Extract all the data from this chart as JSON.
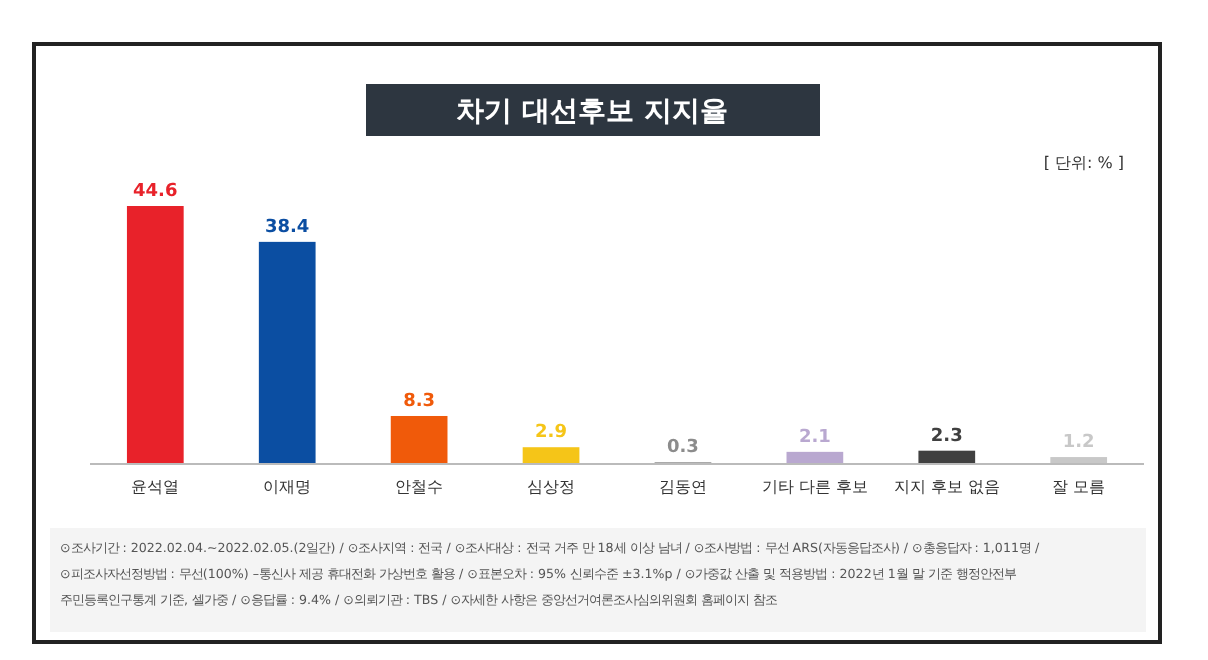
{
  "chart_data": {
    "type": "bar",
    "title": "차기 대선후보 지지율",
    "categories": [
      "윤석열",
      "이재명",
      "안철수",
      "심상정",
      "김동연",
      "기타 다른 후보",
      "지지 후보 없음",
      "잘 모름"
    ],
    "values": [
      44.6,
      38.4,
      8.3,
      2.9,
      0.3,
      2.1,
      2.3,
      1.2
    ],
    "colors": [
      "#e8222a",
      "#0b4ea2",
      "#f05a0a",
      "#f5c518",
      "#8c8c8c",
      "#b9a8d0",
      "#404040",
      "#c8c8c8"
    ],
    "data_labels": true,
    "annotations": [
      "[ 단위: % ]",
      "⊙조사기간 : 2022.02.04.~2022.02.05.(2일간) / ⊙조사지역 : 전국 / ⊙조사대상 : 전국 거주 만 18세 이상 남녀 / ⊙조사방법 : 무선 ARS(자동응답조사) / ⊙총응답자 : 1,011명 /",
      "⊙피조사자선정방법 : 무선(100%) –통신사 제공 휴대전화 가상번호 활용 / ⊙표본오차 : 95% 신뢰수준 ±3.1%p / ⊙가중값 산출 및 적용방법 : 2022년 1월 말 기준 행정안전부",
      "주민등록인구통계 기준, 셀가중 / ⊙응답률 : 9.4% / ⊙의뢰기관 : TBS / ⊙자세한 사항은 중앙선거여론조사심의위원회 홈페이지 참조"
    ]
  }
}
